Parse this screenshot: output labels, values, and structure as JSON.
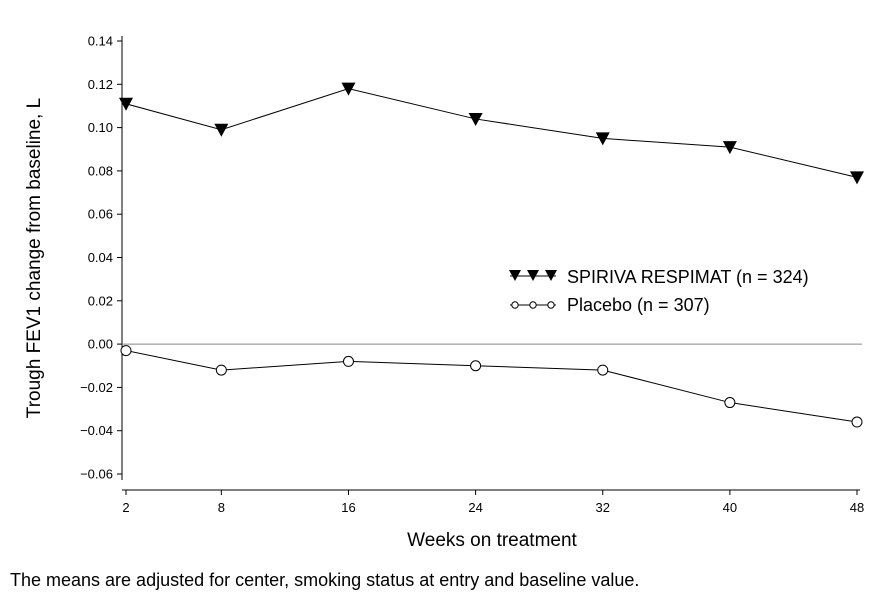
{
  "chart_data": {
    "type": "line",
    "title": "",
    "xlabel": "Weeks on treatment",
    "ylabel": "Trough FEV1 change from baseline, L",
    "x": [
      2,
      8,
      16,
      24,
      32,
      40,
      48
    ],
    "xticks": [
      "2",
      "8",
      "16",
      "24",
      "32",
      "40",
      "48"
    ],
    "ylim": [
      -0.06,
      0.14
    ],
    "yticks": [
      "0.14",
      "0.12",
      "0.10",
      "0.08",
      "0.06",
      "0.04",
      "0.02",
      "0.00",
      "−0.02",
      "−0.04",
      "−0.06"
    ],
    "ytick_values": [
      0.14,
      0.12,
      0.1,
      0.08,
      0.06,
      0.04,
      0.02,
      0.0,
      -0.02,
      -0.04,
      -0.06
    ],
    "reference_line_y": 0,
    "grid": false,
    "legend_position": "center-right",
    "series": [
      {
        "name": "SPIRIVA RESPIMAT (n = 324)",
        "marker": "filled-down-triangle",
        "values": [
          0.111,
          0.099,
          0.118,
          0.104,
          0.095,
          0.091,
          0.077
        ]
      },
      {
        "name": "Placebo (n = 307)",
        "marker": "open-circle",
        "values": [
          -0.003,
          -0.012,
          -0.008,
          -0.01,
          -0.012,
          -0.027,
          -0.036
        ]
      }
    ]
  },
  "footnote": "The means are adjusted for center, smoking status at entry and baseline value."
}
